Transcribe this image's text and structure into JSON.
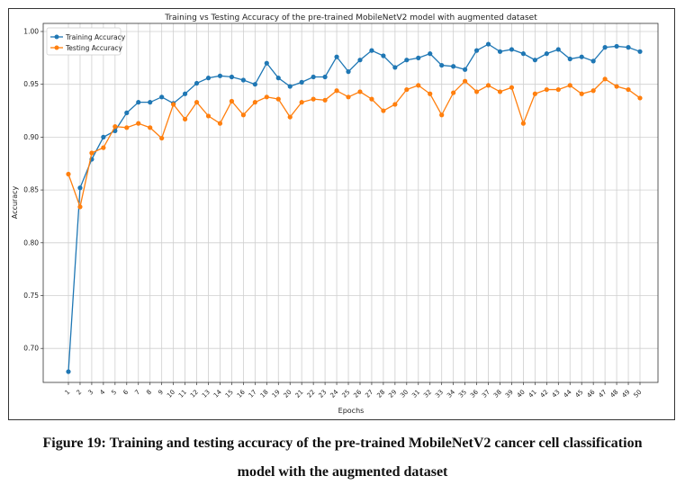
{
  "chart_data": {
    "type": "line",
    "title": "Training vs Testing Accuracy of the pre-trained MobileNetV2 model with augmented dataset",
    "xlabel": "Epochs",
    "ylabel": "Accuracy",
    "ylim": [
      0.66,
      1.005
    ],
    "yticks": [
      "0.70",
      "0.75",
      "0.80",
      "0.85",
      "0.90",
      "0.95",
      "1.00"
    ],
    "x": [
      1,
      2,
      3,
      4,
      5,
      6,
      7,
      8,
      9,
      10,
      11,
      12,
      13,
      14,
      15,
      16,
      17,
      18,
      19,
      20,
      21,
      22,
      23,
      24,
      25,
      26,
      27,
      28,
      29,
      30,
      31,
      32,
      33,
      34,
      35,
      36,
      37,
      38,
      39,
      40,
      41,
      42,
      43,
      44,
      45,
      46,
      47,
      48,
      49,
      50
    ],
    "grid": true,
    "legend": "top-left",
    "series": [
      {
        "name": "Training Accuracy",
        "color": "#1f77b4",
        "values": [
          0.678,
          0.852,
          0.879,
          0.9,
          0.906,
          0.923,
          0.933,
          0.933,
          0.938,
          0.932,
          0.941,
          0.951,
          0.956,
          0.958,
          0.957,
          0.954,
          0.95,
          0.97,
          0.956,
          0.948,
          0.952,
          0.957,
          0.957,
          0.976,
          0.962,
          0.973,
          0.982,
          0.977,
          0.966,
          0.973,
          0.975,
          0.979,
          0.968,
          0.967,
          0.964,
          0.982,
          0.988,
          0.981,
          0.983,
          0.979,
          0.973,
          0.979,
          0.983,
          0.974,
          0.976,
          0.972,
          0.985,
          0.986,
          0.985,
          0.981
        ]
      },
      {
        "name": "Testing Accuracy",
        "color": "#ff7f0e",
        "values": [
          0.865,
          0.834,
          0.885,
          0.89,
          0.91,
          0.909,
          0.913,
          0.909,
          0.899,
          0.931,
          0.917,
          0.933,
          0.92,
          0.913,
          0.934,
          0.921,
          0.933,
          0.938,
          0.936,
          0.919,
          0.933,
          0.936,
          0.935,
          0.944,
          0.938,
          0.943,
          0.936,
          0.925,
          0.931,
          0.945,
          0.949,
          0.941,
          0.921,
          0.942,
          0.953,
          0.943,
          0.949,
          0.943,
          0.947,
          0.913,
          0.941,
          0.945,
          0.945,
          0.949,
          0.941,
          0.944,
          0.955,
          0.948,
          0.945,
          0.937
        ]
      }
    ]
  },
  "caption": {
    "line1": "Figure 19: Training and testing accuracy of the pre-trained MobileNetV2 cancer cell classification",
    "line2": "model with the augmented dataset"
  }
}
